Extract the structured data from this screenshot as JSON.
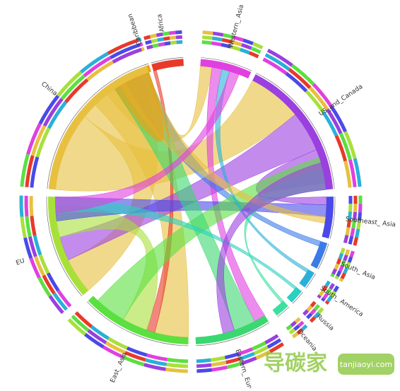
{
  "nodes": [
    {
      "label": "Caribbean",
      "color": "#f39c12"
    },
    {
      "label": "Africa",
      "color": "#e8392a"
    },
    {
      "label": "Western_ Asia",
      "color": "#e040e0"
    },
    {
      "label": "US_and_Canada",
      "color": "#9b3fe0"
    },
    {
      "label": "Southeast_ Asia",
      "color": "#4a4ae8"
    },
    {
      "label": "South_ Asia",
      "color": "#3a7be8"
    },
    {
      "label": "South_ America",
      "color": "#2ab0d8"
    },
    {
      "label": "Russia",
      "color": "#2ad0c0"
    },
    {
      "label": "Oceania",
      "color": "#3ae0a0"
    },
    {
      "label": "Eastern_ Europe",
      "color": "#3ad870"
    },
    {
      "label": "East_ Asia",
      "color": "#5ae040"
    },
    {
      "label": "EU",
      "color": "#a8e03a"
    },
    {
      "label": "China",
      "color": "#e8c040"
    }
  ],
  "watermark": {
    "brand": "导碳家",
    "site": "tanjiaoyi.com"
  }
}
